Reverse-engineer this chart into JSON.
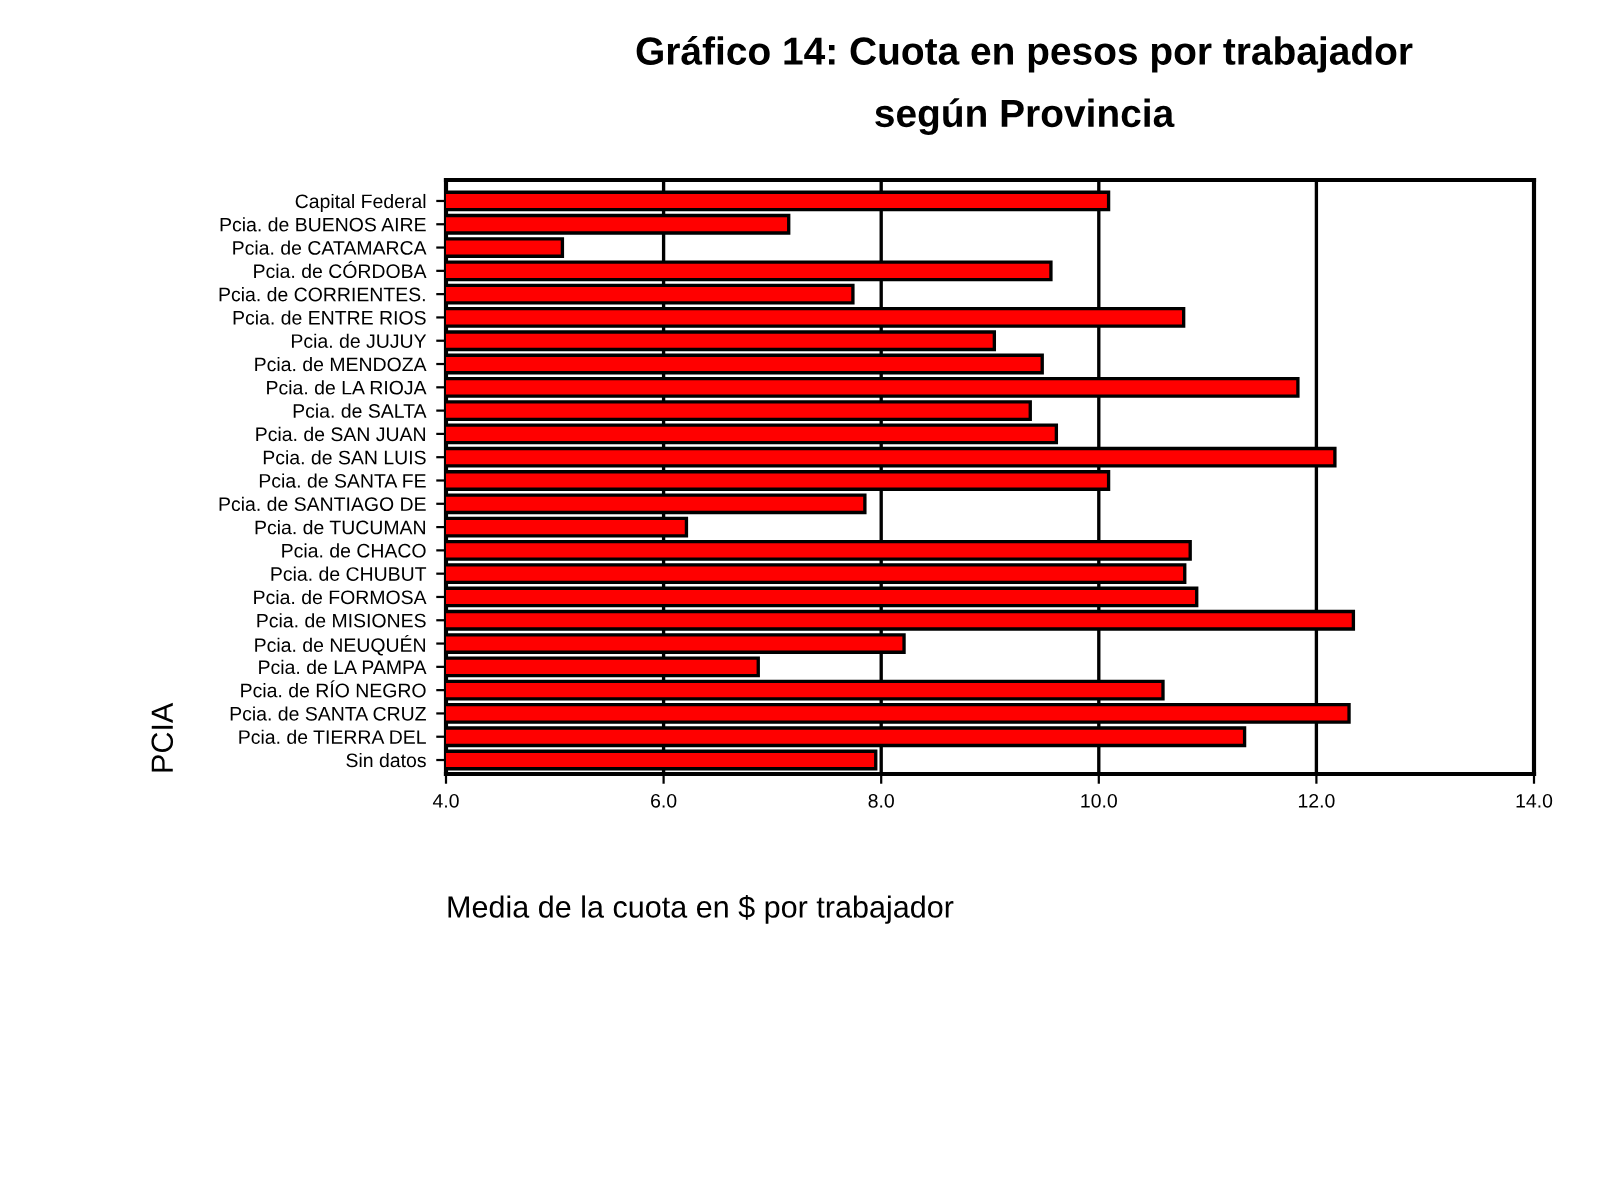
{
  "chart_data": {
    "type": "bar",
    "orientation": "horizontal",
    "title": "Gráfico 14: Cuota en pesos por trabajador\nsegún Provincia",
    "xlabel": "Media de la cuota en $ por trabajador",
    "ylabel": "PCIA",
    "categories": [
      "Capital Federal",
      "Pcia. de BUENOS AIRE",
      "Pcia. de CATAMARCA",
      "Pcia. de CÓRDOBA",
      "Pcia. de CORRIENTES.",
      "Pcia. de ENTRE RIOS",
      "Pcia. de JUJUY",
      "Pcia. de MENDOZA",
      "Pcia. de LA RIOJA",
      "Pcia. de SALTA",
      "Pcia. de SAN JUAN",
      "Pcia. de SAN LUIS",
      "Pcia. de SANTA FE",
      "Pcia. de SANTIAGO DE",
      "Pcia. de TUCUMAN",
      "Pcia. de CHACO",
      "Pcia. de CHUBUT",
      "Pcia. de FORMOSA",
      "Pcia. de MISIONES",
      "Pcia. de NEUQUÉN",
      "Pcia. de LA PAMPA",
      "Pcia. de RÍO NEGRO",
      "Pcia. de SANTA CRUZ",
      "Pcia. de TIERRA DEL",
      "Sin datos"
    ],
    "values": [
      10.09,
      7.15,
      5.07,
      9.56,
      7.74,
      10.78,
      9.04,
      9.48,
      11.83,
      9.37,
      9.61,
      12.17,
      10.09,
      7.85,
      6.21,
      10.84,
      10.79,
      10.9,
      12.34,
      8.21,
      6.87,
      10.59,
      12.3,
      11.34,
      7.95
    ],
    "color": "#ff0000",
    "xlim": [
      4,
      14
    ],
    "xticks": [
      {
        "value": 4,
        "label": "4.0"
      },
      {
        "value": 6,
        "label": "6.0"
      },
      {
        "value": 8,
        "label": "8.0"
      },
      {
        "value": 10,
        "label": "10.0"
      },
      {
        "value": 12,
        "label": "12.0"
      },
      {
        "value": 14,
        "label": "14.0"
      }
    ],
    "grid": "x"
  }
}
